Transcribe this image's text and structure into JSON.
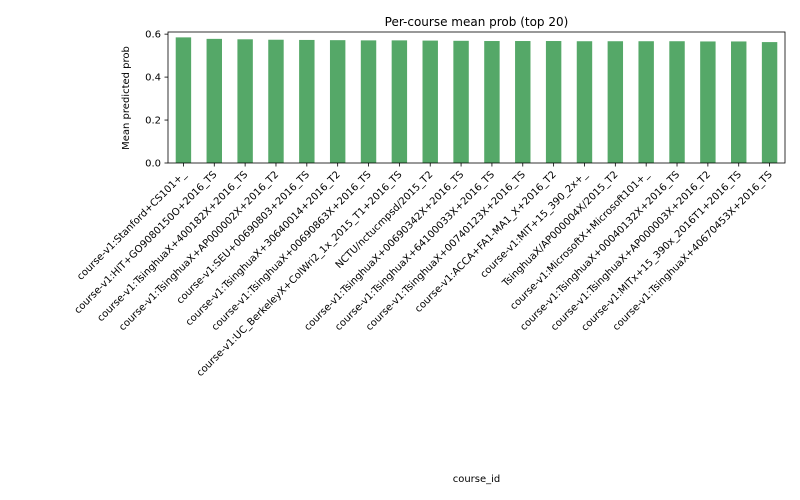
{
  "chart_data": {
    "type": "bar",
    "title": "Per-course mean prob (top 20)",
    "xlabel": "course_id",
    "ylabel": "Mean predicted prob",
    "ylim": [
      0,
      0.61
    ],
    "yticks": [
      "0.0",
      "0.2",
      "0.4",
      "0.6"
    ],
    "bar_color": "#55a868",
    "grid": false,
    "categories": [
      "course-v1:Stanford+CS101+_",
      "course-v1:HIT+GO9080150O+2016_TS",
      "course-v1:TsinghuaX+400182X+2016_TS",
      "course-v1:TsinghuaX+AP000002X+2016_T2",
      "course-v1:SEU+00690803+2016_TS",
      "course-v1:TsinghuaX+30640014+2016_T2",
      "course-v1:TsinghuaX+00690863X+2016_TS",
      "course-v1:UC_BerkeleyX+ColWri2_1x_2015_T1+2016_TS",
      "NCTU/nctucmpsd/2015_T2",
      "course-v1:TsinghuaX+00690342X+2016_TS",
      "course-v1:TsinghuaX+64100033X+2016_TS",
      "course-v1:TsinghuaX+00740123X+2016_TS",
      "course-v1:ACCA+FA1-MA1_X+2016_T2",
      "course-v1:MIT+15_390_2x+_",
      "TsinghuaX/AP000004X/2015_T2",
      "course-v1:MicrosoftX+Microsoft101+_",
      "course-v1:TsinghuaX+00040132X+2016_TS",
      "course-v1:TsinghuaX+AP000003X+2016_T2",
      "course-v1:MITx+15_390x_2016T1+2016_TS",
      "course-v1:TsinghuaX+40670453X+2016_TS"
    ],
    "values": [
      0.585,
      0.578,
      0.576,
      0.574,
      0.573,
      0.572,
      0.571,
      0.571,
      0.57,
      0.569,
      0.568,
      0.568,
      0.568,
      0.567,
      0.567,
      0.567,
      0.567,
      0.566,
      0.566,
      0.563
    ]
  }
}
